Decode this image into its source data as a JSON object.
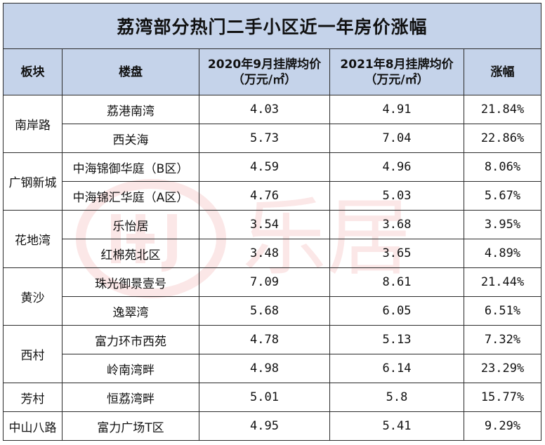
{
  "title": "荔湾部分热门二手小区近一年房价涨幅",
  "headers": {
    "block": "板块",
    "estate": "楼盘",
    "price2020": "2020年9月挂牌均价",
    "price2021": "2021年8月挂牌均价",
    "unit": "（万元/㎡）",
    "growth": "涨幅"
  },
  "watermark": "乐居",
  "blocks": [
    "南岸路",
    "广钢新城",
    "花地湾",
    "黄沙",
    "西村",
    "芳村",
    "中山八路"
  ],
  "rows": [
    {
      "estate": "荔港南湾",
      "p2020": "4.03",
      "p2021": "4.91",
      "growth": "21.84%"
    },
    {
      "estate": "西关海",
      "p2020": "5.73",
      "p2021": "7.04",
      "growth": "22.86%"
    },
    {
      "estate": "中海锦御华庭（B区）",
      "p2020": "4.59",
      "p2021": "4.96",
      "growth": "8.06%"
    },
    {
      "estate": "中海锦汇华庭（A区）",
      "p2020": "4.76",
      "p2021": "5.03",
      "growth": "5.67%"
    },
    {
      "estate": "乐怡居",
      "p2020": "3.54",
      "p2021": "3.68",
      "growth": "3.95%"
    },
    {
      "estate": "红棉苑北区",
      "p2020": "3.48",
      "p2021": "3.65",
      "growth": "4.89%"
    },
    {
      "estate": "珠光御景壹号",
      "p2020": "7.09",
      "p2021": "8.61",
      "growth": "21.44%"
    },
    {
      "estate": "逸翠湾",
      "p2020": "5.68",
      "p2021": "6.05",
      "growth": "6.51%"
    },
    {
      "estate": "富力环市西苑",
      "p2020": "4.78",
      "p2021": "5.13",
      "growth": "7.32%"
    },
    {
      "estate": "岭南湾畔",
      "p2020": "4.98",
      "p2021": "6.14",
      "growth": "23.29%"
    },
    {
      "estate": "恒荔湾畔",
      "p2020": "5.01",
      "p2021": "5.8",
      "growth": "15.77%"
    },
    {
      "estate": "富力广场T区",
      "p2020": "4.95",
      "p2021": "5.41",
      "growth": "9.29%"
    }
  ]
}
